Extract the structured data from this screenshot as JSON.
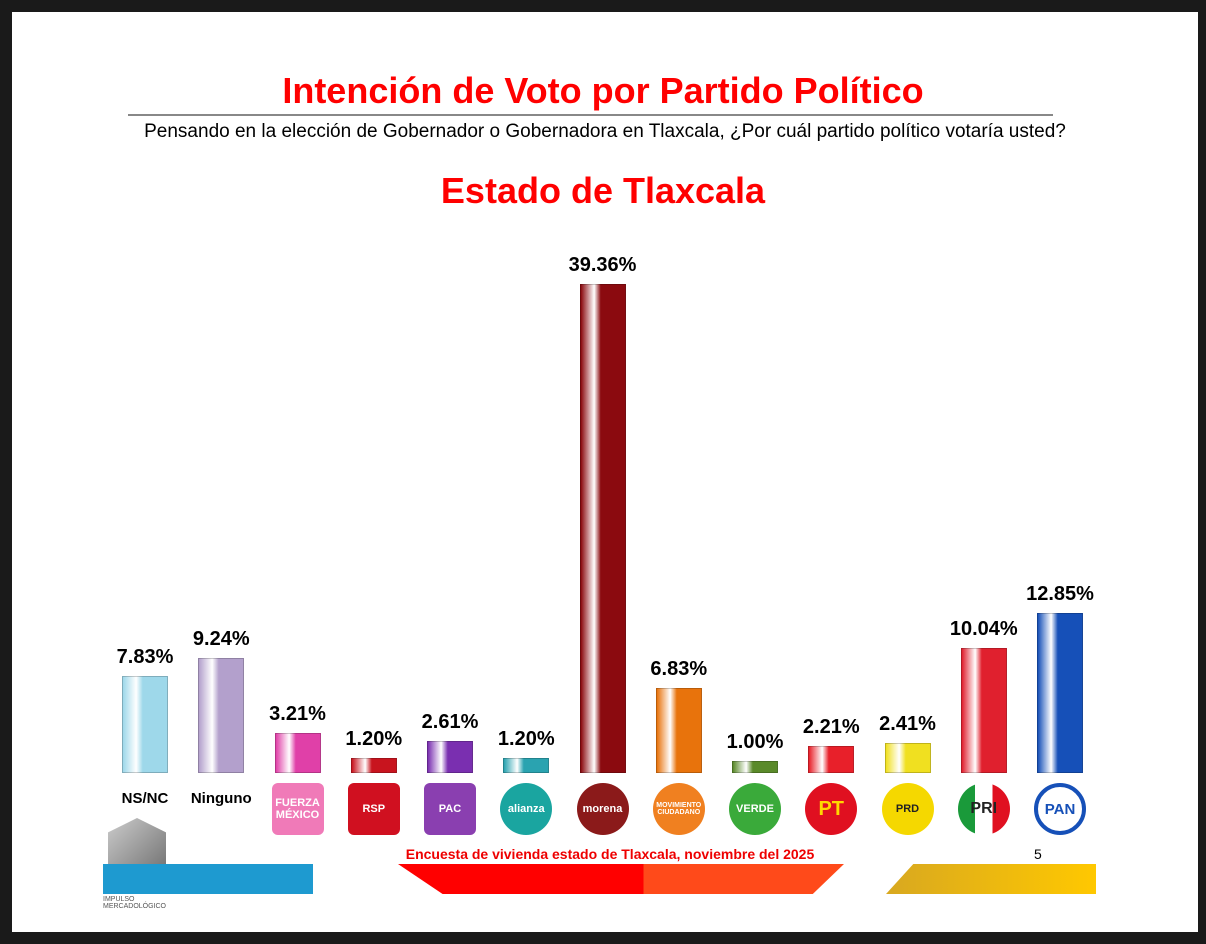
{
  "title": "Intención de Voto por Partido Político",
  "subtitle": "Pensando en la elección de Gobernador o Gobernadora en Tlaxcala, ¿Por cuál partido político votaría usted?",
  "region": "Estado de Tlaxcala",
  "footer": "Encuesta de vivienda estado de Tlaxcala, noviembre del 2025",
  "page_number": "5",
  "brand": "IMPULSO MERCADOLÓGICO",
  "chart_data": {
    "type": "bar",
    "categories": [
      "NS/NC",
      "Ninguno",
      "Fuerza por México",
      "RSP",
      "PAC",
      "Alianza",
      "Morena",
      "Movimiento Ciudadano",
      "Verde",
      "PT",
      "PRD",
      "PRI",
      "PAN"
    ],
    "category_labels": [
      "NS/NC",
      "Ninguno",
      "",
      "",
      "",
      "",
      "",
      "",
      "",
      "",
      "",
      "",
      ""
    ],
    "logo_text": [
      "",
      "",
      "FUERZA MÉXICO",
      "RSP",
      "PAC",
      "alianza",
      "morena",
      "MOVIMIENTO CIUDADANO",
      "VERDE",
      "PT",
      "PRD",
      "PRI",
      "PAN"
    ],
    "values": [
      7.83,
      9.24,
      3.21,
      1.2,
      2.61,
      1.2,
      39.36,
      6.83,
      1.0,
      2.21,
      2.41,
      10.04,
      12.85
    ],
    "data_labels": [
      "7.83%",
      "9.24%",
      "3.21%",
      "1.20%",
      "2.61%",
      "1.20%",
      "39.36%",
      "6.83%",
      "1.00%",
      "2.21%",
      "2.41%",
      "10.04%",
      "12.85%"
    ],
    "colors": [
      "#9ed8ea",
      "#b3a0cc",
      "#e040a8",
      "#c8141e",
      "#7a2fb0",
      "#2aa3b0",
      "#8b0a0f",
      "#e8730c",
      "#5a8a2a",
      "#e8202a",
      "#f0e020",
      "#e0202e",
      "#1650b8"
    ],
    "logo_colors": [
      "",
      "",
      "#f07ab8",
      "#d01020",
      "#8a3fb0",
      "#1aa5a0",
      "#8b1a1a",
      "#f08020",
      "#3aaa3a",
      "#e01020",
      "#f5d800",
      "#fff",
      "#fff"
    ],
    "ylim": [
      0,
      40
    ],
    "grid": false,
    "legend": "none"
  }
}
